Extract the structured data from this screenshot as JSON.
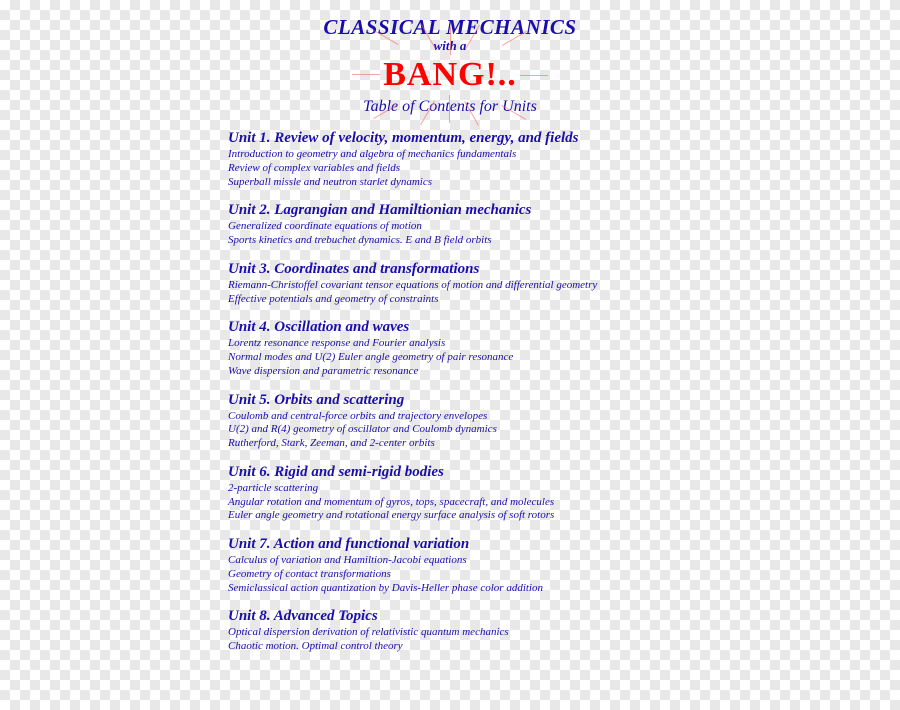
{
  "header": {
    "main_title": "CLASSICAL MECHANICS",
    "with_a": "with a",
    "bang": "BANG!..",
    "subtitle": "Table of Contents for Units"
  },
  "colors": {
    "text_primary": "#1a0dab",
    "bang_color": "#ff0000",
    "ray_color": "rgba(255,100,100,0.6)"
  },
  "units": [
    {
      "title": "Unit 1. Review of velocity, momentum, energy, and fields",
      "items": [
        "Introduction to geometry and algebra of mechanics fundamentals",
        "Review of complex variables and fields",
        "Superball missle and neutron starlet dynamics"
      ]
    },
    {
      "title": "Unit 2. Lagrangian and Hamiltionian mechanics",
      "items": [
        "Generalized coordinate equations of motion",
        "Sports kinetics and trebuchet dynamics. E and B field orbits"
      ]
    },
    {
      "title": "Unit 3. Coordinates and transformations",
      "items": [
        "Riemann-Christoffel covariant tensor equations of motion and differential geometry",
        "Effective potentials and geometry of constraints"
      ]
    },
    {
      "title": "Unit 4. Oscillation and waves",
      "items": [
        "Lorentz resonance response and Fourier analysis",
        "Normal modes and U(2) Euler angle geometry of pair resonance",
        "Wave dispersion and parametric resonance"
      ]
    },
    {
      "title": "Unit 5. Orbits and scattering",
      "items": [
        "Coulomb and central-force orbits and trajectory envelopes",
        "U(2) and R(4) geometry of oscillator and Coulomb dynamics",
        "Rutherford, Stark, Zeeman, and 2-center orbits"
      ]
    },
    {
      "title": "Unit 6. Rigid and semi-rigid bodies",
      "items": [
        "2-particle scattering",
        "Angular rotation and momentum of gyros, tops, spacecraft, and molecules",
        "Euler angle geometry and rotational energy surface analysis of soft rotors"
      ]
    },
    {
      "title": "Unit 7. Action and functional variation",
      "items": [
        "Calculus of variation and Hamiltion-Jacobi equations",
        "Geometry of contact transformations",
        "Semiclassical action quantization by Davis-Heller phase color addition"
      ]
    },
    {
      "title": "Unit 8. Advanced Topics",
      "items": [
        "Optical dispersion derivation of relativistic quantum mechanics",
        "Chaotic motion. Optimal control theory"
      ]
    }
  ]
}
